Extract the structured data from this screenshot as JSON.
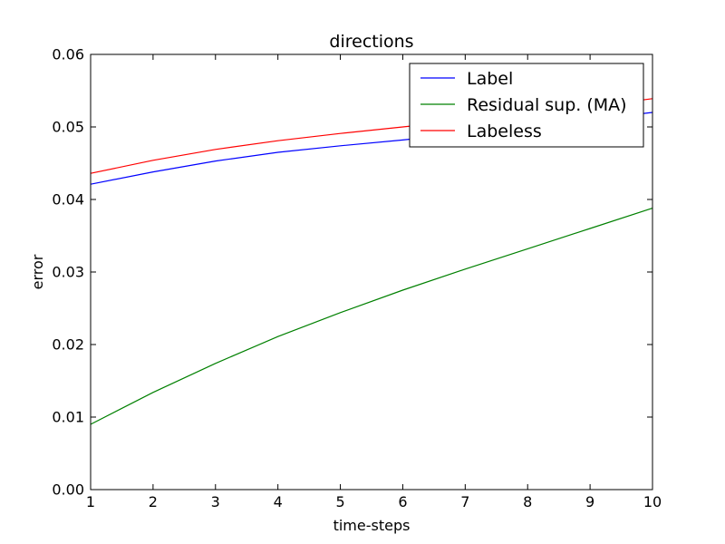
{
  "chart_data": {
    "type": "line",
    "title": "directions",
    "xlabel": "time-steps",
    "ylabel": "error",
    "xlim": [
      1,
      10
    ],
    "ylim": [
      0,
      0.06
    ],
    "xticks": [
      1,
      2,
      3,
      4,
      5,
      6,
      7,
      8,
      9,
      10
    ],
    "xtick_labels": [
      "1",
      "2",
      "3",
      "4",
      "5",
      "6",
      "7",
      "8",
      "9",
      "10"
    ],
    "yticks": [
      0,
      0.01,
      0.02,
      0.03,
      0.04,
      0.05,
      0.06
    ],
    "ytick_labels": [
      "0.00",
      "0.01",
      "0.02",
      "0.03",
      "0.04",
      "0.05",
      "0.06"
    ],
    "grid": false,
    "legend_position": "top-right",
    "x": [
      1,
      2,
      3,
      4,
      5,
      6,
      7,
      8,
      9,
      10
    ],
    "series": [
      {
        "name": "Label",
        "color": "#0000ff",
        "values": [
          0.0421,
          0.0438,
          0.0453,
          0.0465,
          0.0474,
          0.0482,
          0.0491,
          0.05,
          0.051,
          0.052
        ]
      },
      {
        "name": "Residual sup. (MA)",
        "color": "#008000",
        "values": [
          0.009,
          0.0134,
          0.0174,
          0.0211,
          0.0244,
          0.0275,
          0.0304,
          0.0332,
          0.036,
          0.0388
        ]
      },
      {
        "name": "Labeless",
        "color": "#ff0000",
        "values": [
          0.0436,
          0.0454,
          0.0469,
          0.0481,
          0.0491,
          0.05,
          0.0509,
          0.0518,
          0.0528,
          0.0539
        ]
      }
    ]
  }
}
